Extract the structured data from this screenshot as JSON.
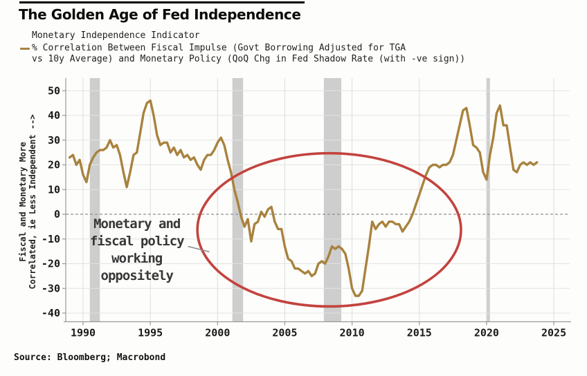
{
  "colors": {
    "line": "#a8823e",
    "recession_band": "#cecece",
    "ellipse": "#c3433e",
    "grid_h": "#e3e3e3",
    "grid_v": "#dddddd",
    "zero_line": "#8f8f8f",
    "axis": "#989898",
    "tick_label": "#1a1a1a",
    "pointer": "#8a8a8a"
  },
  "chart_data": {
    "type": "line",
    "title": "The Golden Age of Fed Independence",
    "subtitle": "Monetary Independence Indicator",
    "legend_line1": "% Correlation Between Fiscal Impulse (Govt Borrowing Adjusted for TGA",
    "legend_line2": "vs 10y Average) and Monetary Policy (QoQ Chg in Fed Shadow Rate (with -ve sign))",
    "ylabel_line1": "Fiscal and Monetary More",
    "ylabel_line2": "Correlated, ie Less Independent --&gt;",
    "source": "Source: Bloomberg; Macrobond",
    "x_ticks": [
      1990,
      1995,
      2000,
      2005,
      2010,
      2015,
      2020,
      2025
    ],
    "y_ticks": [
      50,
      40,
      30,
      20,
      10,
      0,
      -10,
      -20,
      -30,
      -40
    ],
    "xlim": [
      1988.7,
      2026.1
    ],
    "ylim": [
      -43,
      55
    ],
    "grid": true,
    "zero_line_dashed": true,
    "recession_bands": [
      [
        1990.5,
        1991.25
      ],
      [
        2001.1,
        2001.9
      ],
      [
        2007.9,
        2009.2
      ],
      [
        2020.0,
        2020.25
      ]
    ],
    "series": [
      {
        "name": "% Correlation Fiscal Impulse vs Monetary Policy",
        "x_start": 1989.0,
        "x_step": 0.25,
        "values": [
          23,
          24,
          20,
          22,
          16,
          13,
          20,
          23,
          25,
          26,
          26,
          27,
          30,
          27,
          28,
          24,
          17,
          11,
          17,
          24,
          25,
          33,
          41,
          45,
          46,
          40,
          32,
          28,
          29,
          29,
          25,
          27,
          24,
          26,
          23,
          24,
          22,
          23,
          20,
          18,
          22,
          24,
          24,
          26,
          29,
          31,
          28,
          22,
          17,
          10,
          5,
          -1,
          -5,
          -2,
          -11,
          -4,
          -3,
          1,
          -1,
          2,
          3,
          -3,
          -6,
          -6,
          -13,
          -18,
          -19,
          -22,
          -22,
          -23,
          -24,
          -23,
          -25,
          -24,
          -20,
          -19,
          -20,
          -17,
          -13,
          -14,
          -13,
          -14,
          -16,
          -22,
          -30,
          -33,
          -33,
          -31,
          -22,
          -13,
          -3,
          -6,
          -4,
          -3,
          -5,
          -3,
          -3,
          -4,
          -4,
          -7,
          -5,
          -3,
          0,
          4,
          8,
          12,
          16,
          19,
          20,
          20,
          19,
          20,
          20,
          21,
          24,
          30,
          36,
          42,
          43,
          36,
          28,
          27,
          25,
          17,
          14,
          24,
          31,
          41,
          44,
          36,
          36,
          27,
          18,
          17,
          20,
          21,
          20,
          21,
          20,
          21
        ]
      }
    ],
    "annotations": {
      "ellipse": {
        "center_year": 2008.3,
        "center_value": -6.3,
        "rx_years": 9.8,
        "ry_values": 31
      },
      "label": {
        "lines": [
          "Monetary and",
          "fiscal policy",
          "working",
          "oppositely"
        ],
        "center_year": 1994.0,
        "center_value": -14.5
      },
      "pointer": {
        "x1_year": 1997.8,
        "y1_value": -13.0,
        "x2_year": 1999.4,
        "y2_value": -15.2
      }
    }
  }
}
